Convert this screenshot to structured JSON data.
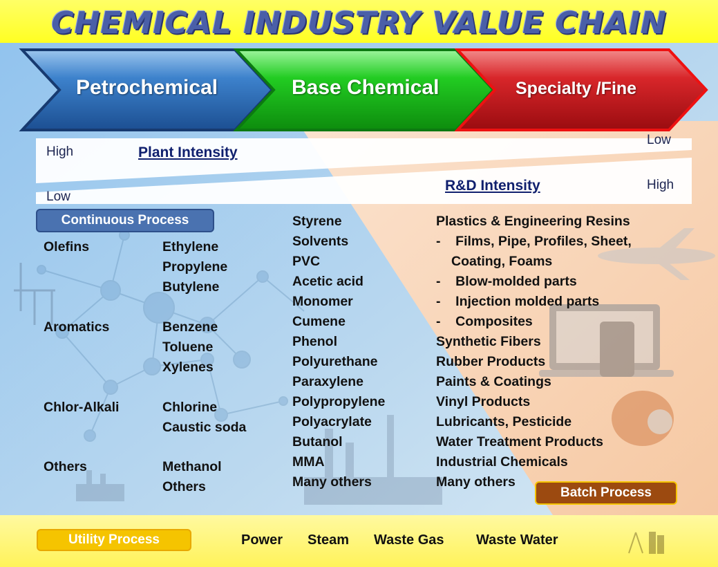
{
  "title": "CHEMICAL INDUSTRY VALUE CHAIN",
  "stages": [
    "Petrochemical",
    "Base Chemical",
    "Specialty /Fine"
  ],
  "intensity": {
    "plant": {
      "label": "Plant Intensity",
      "high": "High",
      "low": "Low"
    },
    "rd": {
      "label": "R&D Intensity",
      "low": "Low",
      "high": "High"
    }
  },
  "continuous_process": "Continuous Process",
  "batch_process": "Batch Process",
  "petrochemical": {
    "groups": [
      {
        "name": "Olefins",
        "items": [
          "Ethylene",
          "Propylene",
          "Butylene"
        ]
      },
      {
        "name": "Aromatics",
        "items": [
          "Benzene",
          "Toluene",
          "Xylenes"
        ]
      },
      {
        "name": "Chlor-Alkali",
        "items": [
          "Chlorine",
          "Caustic soda"
        ]
      },
      {
        "name": "Others",
        "items": [
          "Methanol",
          "Others"
        ]
      }
    ]
  },
  "base_chemicals": [
    "Styrene",
    "Solvents",
    "PVC",
    "Acetic acid",
    "Monomer",
    "Cumene",
    "Phenol",
    "Polyurethane",
    "Paraxylene",
    "Polypropylene",
    "Polyacrylate",
    "Butanol",
    "MMA",
    "Many others"
  ],
  "specialty": [
    "Plastics & Engineering Resins",
    "-    Films, Pipe, Profiles, Sheet,",
    "Coating, Foams",
    "-    Blow-molded parts",
    "-    Injection molded parts",
    "-    Composites",
    "Synthetic Fibers",
    "Rubber Products",
    "Paints & Coatings",
    "Vinyl Products",
    "Lubricants, Pesticide",
    "Water Treatment Products",
    "Industrial Chemicals",
    "Many others"
  ],
  "utility": {
    "label": "Utility Process",
    "items": [
      "Power",
      "Steam",
      "Waste Gas",
      "Waste Water"
    ]
  },
  "colors": {
    "petrochemical": "#2e6fb5",
    "base_chemical": "#1fb51f",
    "specialty": "#c8161c",
    "continuous_badge": "#4a72b0",
    "batch_badge": "#9c4a10",
    "utility_badge": "#f5c400",
    "banner": "#ffff33"
  }
}
